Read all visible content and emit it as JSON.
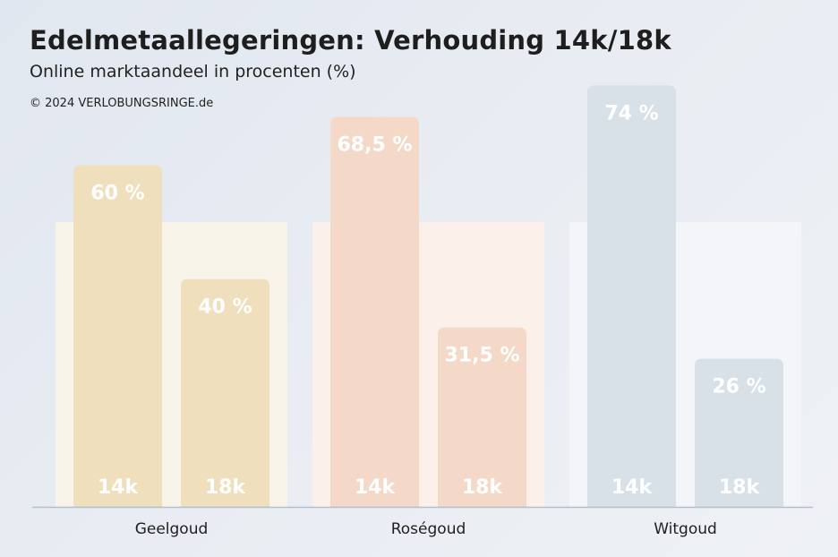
{
  "chart_data": {
    "type": "bar",
    "title": "Edelmetaallegeringen: Verhouding 14k/18k",
    "subtitle": "Online marktaandeel in procenten (%)",
    "credit": "© 2024 VERLOBUNGSRINGE.de",
    "categories": [
      "Geelgoud",
      "Roségoud",
      "Witgoud"
    ],
    "series_labels": [
      "14k",
      "18k"
    ],
    "values": [
      [
        60,
        40
      ],
      [
        68.5,
        31.5
      ],
      [
        74,
        26
      ]
    ],
    "value_labels": [
      [
        "60 %",
        "40 %"
      ],
      [
        "68,5 %",
        "31,5 %"
      ],
      [
        "74 %",
        "26 %"
      ]
    ],
    "reference_level": 50,
    "ylim": [
      0,
      100
    ],
    "grid": false,
    "legend": "none",
    "colors": {
      "bars": [
        "#f0dfbd",
        "#f5d9c8",
        "#d8e0e8"
      ],
      "panels": [
        "#f9f4ea",
        "#fcf1ea",
        "#f3f5f8"
      ],
      "axis": "#b4bfcc"
    }
  }
}
